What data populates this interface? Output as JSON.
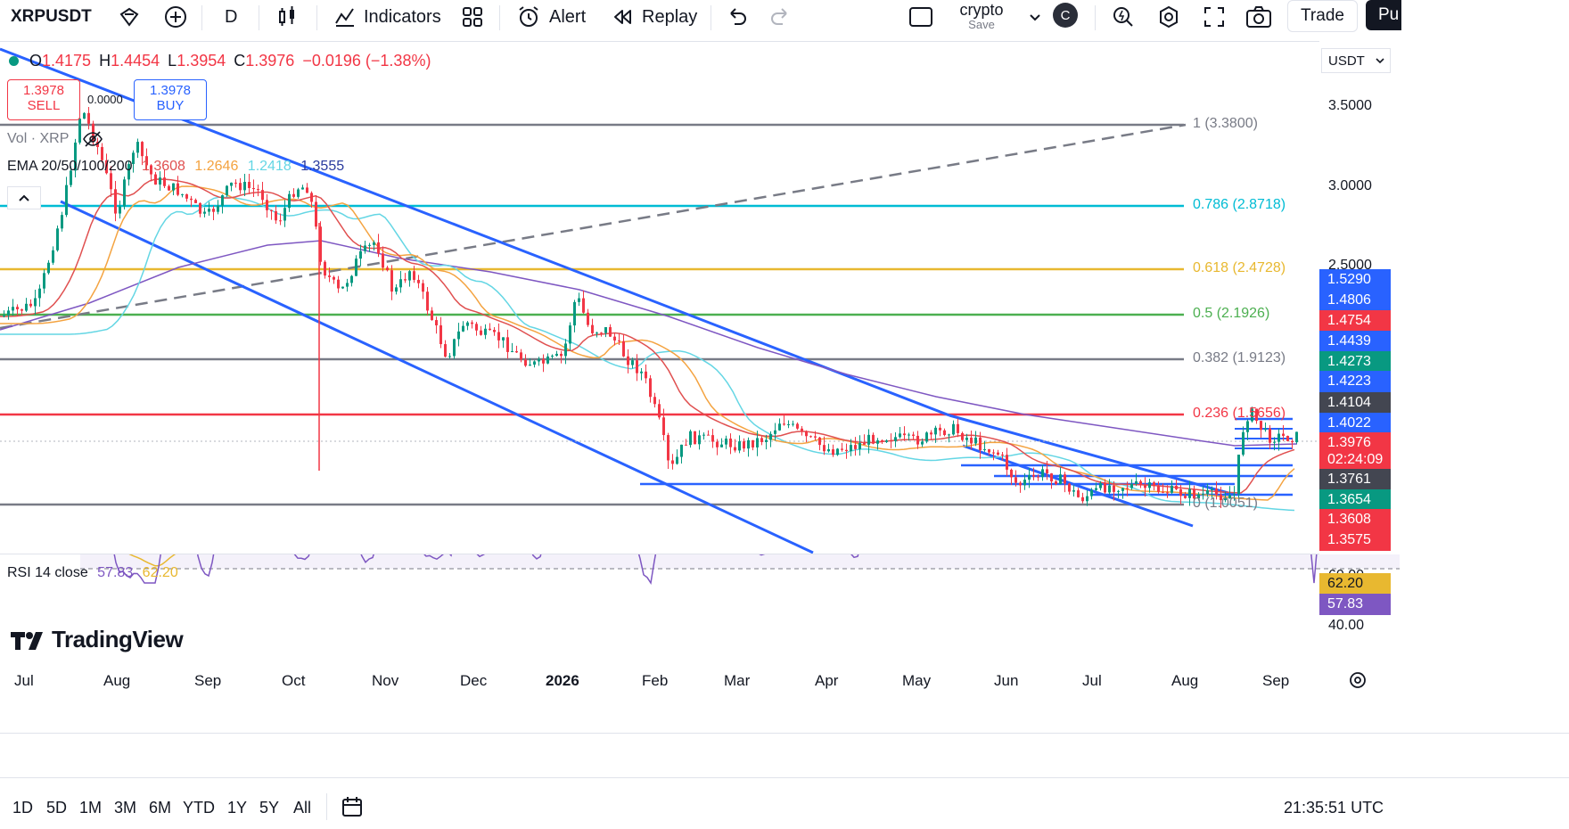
{
  "toolbar": {
    "symbol": "XRPUSDT",
    "interval": "D",
    "indicators_label": "Indicators",
    "alert_label": "Alert",
    "replay_label": "Replay",
    "layout_name": "crypto",
    "layout_save": "Save",
    "avatar_letter": "C",
    "trade_label": "Trade",
    "publish_label": "Pu"
  },
  "legend": {
    "ohlc": {
      "o_label": "O",
      "o": "1.4175",
      "h_label": "H",
      "h": "1.4454",
      "l_label": "L",
      "l": "1.3954",
      "c_label": "C",
      "c": "1.3976",
      "change": "−0.0196 (−1.38%)"
    },
    "sell_price": "1.3978",
    "sell_label": "SELL",
    "buy_price": "1.3978",
    "buy_label": "BUY",
    "spread": "0.0000",
    "vol_label": "Vol · XRP",
    "ema_label": "EMA 20/50/100/200",
    "ema_values": [
      "1.3608",
      "1.2646",
      "1.2418",
      "1.3555"
    ]
  },
  "currency": "USDT",
  "price_axis": [
    "3.5000",
    "3.0000",
    "2.5000"
  ],
  "price_tags": [
    {
      "value": "1.5290",
      "color": "#2962ff"
    },
    {
      "value": "1.4806",
      "color": "#2962ff"
    },
    {
      "value": "1.4754",
      "color": "#f23645"
    },
    {
      "value": "1.4439",
      "color": "#2962ff"
    },
    {
      "value": "1.4273",
      "color": "#089981"
    },
    {
      "value": "1.4223",
      "color": "#2962ff"
    },
    {
      "value": "1.4104",
      "color": "#434651"
    },
    {
      "value": "1.4022",
      "color": "#2962ff"
    },
    {
      "value": "1.3976",
      "color": "#f23645"
    },
    {
      "value": "02:24:09",
      "color": "#f23645"
    },
    {
      "value": "1.3761",
      "color": "#434651"
    },
    {
      "value": "1.3654",
      "color": "#089981"
    },
    {
      "value": "1.3608",
      "color": "#f23645"
    },
    {
      "value": "1.3575",
      "color": "#f23645"
    }
  ],
  "fib_levels": [
    {
      "label": "1 (3.3800)",
      "color": "#787b86"
    },
    {
      "label": "0.786 (2.8718)",
      "color": "#00bcd4"
    },
    {
      "label": "0.618 (2.4728)",
      "color": "#e8b830"
    },
    {
      "label": "0.5 (2.1926)",
      "color": "#4caf50"
    },
    {
      "label": "0.382 (1.9123)",
      "color": "#787b86"
    },
    {
      "label": "0.236 (1.5656)",
      "color": "#f23645"
    },
    {
      "label": "0 (1.0051)",
      "color": "#787b86"
    }
  ],
  "rsi": {
    "label": "RSI 14 close",
    "value": "57.83",
    "ma": "62.20",
    "axis": [
      "60.00",
      "40.00"
    ]
  },
  "brand": "TradingView",
  "time_axis": [
    "Jul",
    "Aug",
    "Sep",
    "Oct",
    "Nov",
    "Dec",
    "2026",
    "Feb",
    "Mar",
    "Apr",
    "May",
    "Jun",
    "Jul",
    "Aug",
    "Sep"
  ],
  "ranges": [
    "1D",
    "5D",
    "1M",
    "3M",
    "6M",
    "YTD",
    "1Y",
    "5Y",
    "All"
  ],
  "clock": "21:35:51 UTC"
}
